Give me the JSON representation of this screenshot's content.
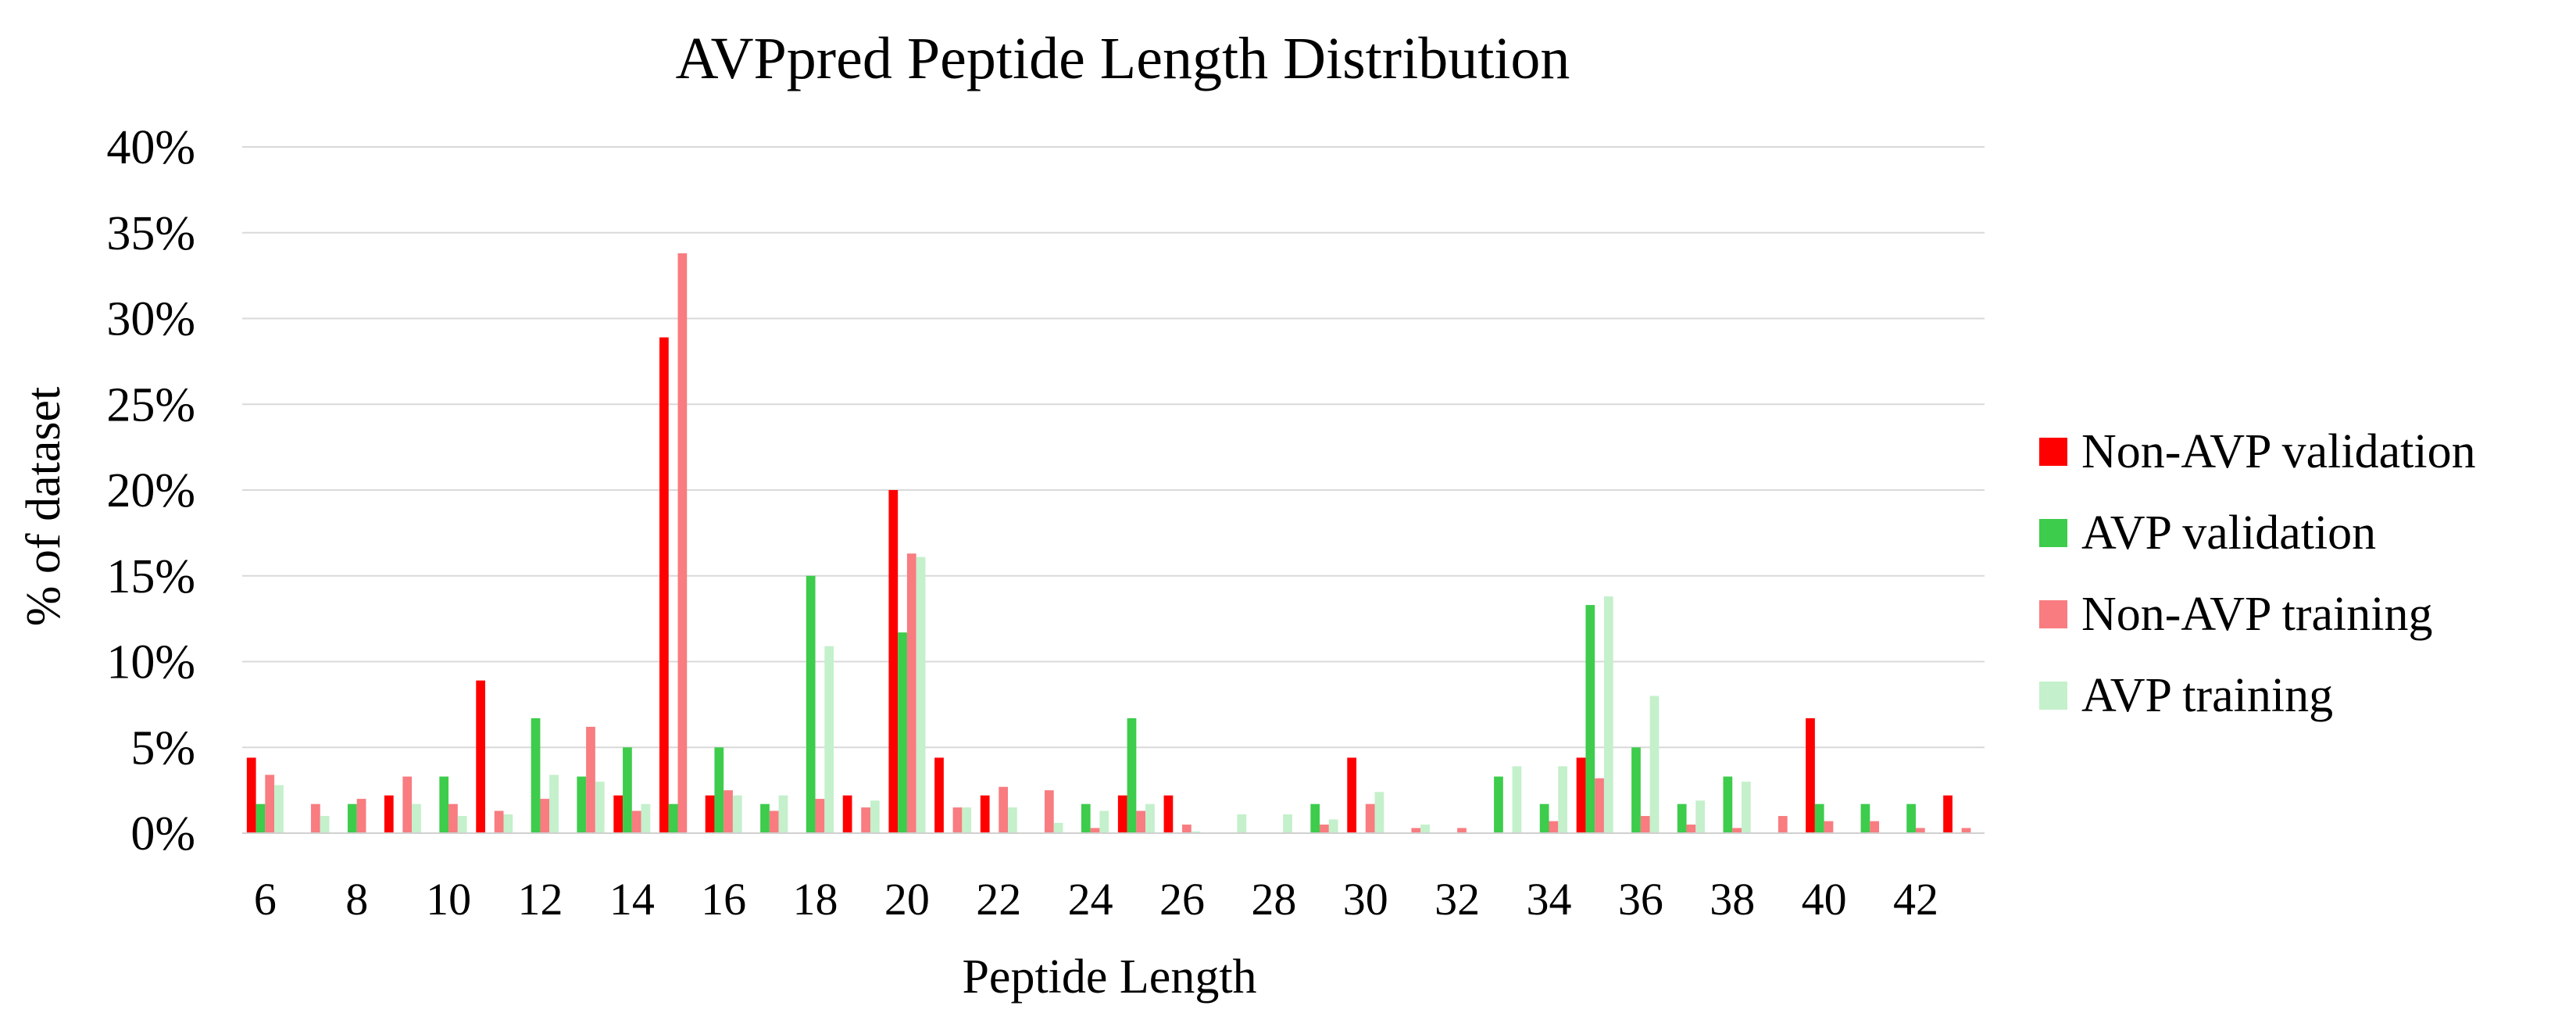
{
  "chart_data": {
    "type": "bar",
    "title": "AVPpred Peptide Length Distribution",
    "xlabel": "Peptide Length",
    "ylabel": "% of dataset",
    "ylim": [
      0,
      40
    ],
    "yticks": [
      "0%",
      "5%",
      "10%",
      "15%",
      "20%",
      "25%",
      "30%",
      "35%",
      "40%"
    ],
    "yticks_values": [
      0,
      5,
      10,
      15,
      20,
      25,
      30,
      35,
      40
    ],
    "grid": true,
    "legend_position": "right",
    "categories": [
      6,
      7,
      8,
      9,
      10,
      11,
      12,
      13,
      14,
      15,
      16,
      17,
      18,
      19,
      20,
      21,
      22,
      23,
      24,
      25,
      26,
      27,
      28,
      29,
      30,
      31,
      32,
      33,
      34,
      35,
      36,
      37,
      38,
      39,
      40,
      41,
      42,
      43
    ],
    "x_tick_labels": [
      "6",
      "8",
      "10",
      "12",
      "14",
      "16",
      "18",
      "20",
      "22",
      "24",
      "26",
      "28",
      "30",
      "32",
      "34",
      "36",
      "38",
      "40",
      "42"
    ],
    "series": [
      {
        "name": "Non-AVP validation",
        "color": "#ff0000",
        "values": [
          4.4,
          0,
          0,
          2.2,
          0,
          8.9,
          0,
          0,
          2.2,
          28.9,
          2.2,
          0,
          0,
          2.2,
          20.0,
          4.4,
          2.2,
          0,
          0,
          2.2,
          2.2,
          0,
          0,
          0,
          4.4,
          0,
          0,
          0,
          0,
          4.4,
          0,
          0,
          0,
          0,
          6.7,
          0,
          0,
          2.2
        ]
      },
      {
        "name": "AVP validation",
        "color": "#3dcc4c",
        "values": [
          1.7,
          0,
          1.7,
          0,
          3.3,
          0,
          6.7,
          3.3,
          5.0,
          1.7,
          5.0,
          1.7,
          15.0,
          0,
          11.7,
          0,
          0,
          0,
          1.7,
          6.7,
          0,
          0,
          0,
          1.7,
          0,
          0,
          0,
          3.3,
          1.7,
          13.3,
          5.0,
          1.7,
          3.3,
          0,
          1.7,
          1.7,
          1.7,
          0
        ]
      },
      {
        "name": "Non-AVP training",
        "color": "#f87c80",
        "values": [
          3.4,
          1.7,
          2.0,
          3.3,
          1.7,
          1.3,
          2.0,
          6.2,
          1.3,
          33.8,
          2.5,
          1.3,
          2.0,
          1.5,
          16.3,
          1.5,
          2.7,
          2.5,
          0.3,
          1.3,
          0.5,
          0,
          0,
          0.5,
          1.7,
          0.3,
          0.3,
          0,
          0.7,
          3.2,
          1.0,
          0.5,
          0.3,
          1.0,
          0.7,
          0.7,
          0.3,
          0.3
        ]
      },
      {
        "name": "AVP training",
        "color": "#c4f0cb",
        "values": [
          2.8,
          1.0,
          0,
          1.7,
          1.0,
          1.1,
          3.4,
          3.0,
          1.7,
          0,
          2.2,
          2.2,
          10.9,
          1.9,
          16.1,
          1.5,
          1.5,
          0.6,
          1.3,
          1.7,
          0.1,
          1.1,
          1.1,
          0.8,
          2.4,
          0.5,
          0,
          3.9,
          3.9,
          13.8,
          8.0,
          1.9,
          3.0,
          0,
          0,
          0,
          0,
          0
        ]
      }
    ]
  }
}
